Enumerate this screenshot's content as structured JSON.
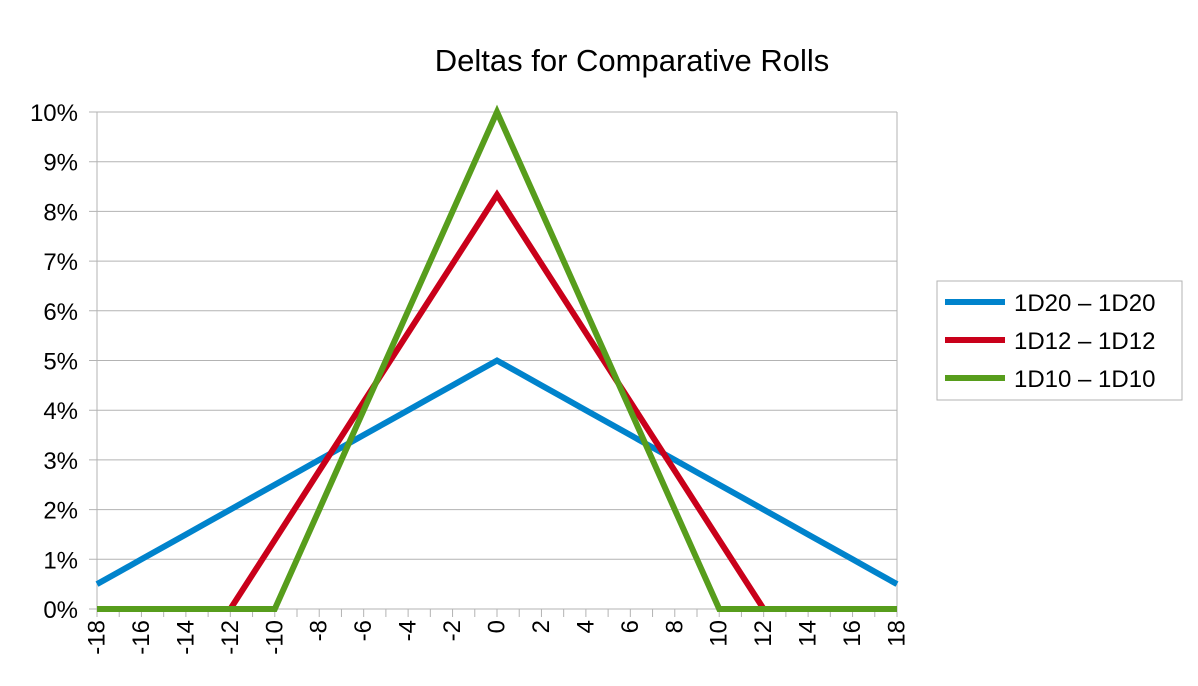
{
  "chart_data": {
    "type": "line",
    "title": "Deltas for Comparative Rolls",
    "xlabel": "",
    "ylabel": "",
    "x": [
      -18,
      -17,
      -16,
      -15,
      -14,
      -13,
      -12,
      -11,
      -10,
      -9,
      -8,
      -7,
      -6,
      -5,
      -4,
      -3,
      -2,
      -1,
      0,
      1,
      2,
      3,
      4,
      5,
      6,
      7,
      8,
      9,
      10,
      11,
      12,
      13,
      14,
      15,
      16,
      17,
      18
    ],
    "x_tick_labels": [
      "-18",
      "-16",
      "-14",
      "-12",
      "-10",
      "-8",
      "-6",
      "-4",
      "-2",
      "0",
      "2",
      "4",
      "6",
      "8",
      "10",
      "12",
      "14",
      "16",
      "18"
    ],
    "y_tick_labels": [
      "0%",
      "1%",
      "2%",
      "3%",
      "4%",
      "5%",
      "6%",
      "7%",
      "8%",
      "9%",
      "10%"
    ],
    "xlim": [
      -18,
      18
    ],
    "ylim": [
      0,
      10
    ],
    "y_unit": "%",
    "grid": "horizontal",
    "legend_position": "right",
    "series": [
      {
        "name": "1D20 – 1D20",
        "color": "#0083cc",
        "values": [
          0.5,
          0.75,
          1.0,
          1.25,
          1.5,
          1.75,
          2.0,
          2.25,
          2.5,
          2.75,
          3.0,
          3.25,
          3.5,
          3.75,
          4.0,
          4.25,
          4.5,
          4.75,
          5.0,
          4.75,
          4.5,
          4.25,
          4.0,
          3.75,
          3.5,
          3.25,
          3.0,
          2.75,
          2.5,
          2.25,
          2.0,
          1.75,
          1.5,
          1.25,
          1.0,
          0.75,
          0.5
        ]
      },
      {
        "name": "1D12 – 1D12",
        "color": "#c9001a",
        "values": [
          0,
          0,
          0,
          0,
          0,
          0,
          0,
          0.694,
          1.389,
          2.083,
          2.778,
          3.472,
          4.167,
          4.861,
          5.556,
          6.25,
          6.944,
          7.639,
          8.333,
          7.639,
          6.944,
          6.25,
          5.556,
          4.861,
          4.167,
          3.472,
          2.778,
          2.083,
          1.389,
          0.694,
          0,
          0,
          0,
          0,
          0,
          0,
          0
        ]
      },
      {
        "name": "1D10 – 1D10",
        "color": "#579d1c",
        "values": [
          0,
          0,
          0,
          0,
          0,
          0,
          0,
          0,
          0,
          1,
          2,
          3,
          4,
          5,
          6,
          7,
          8,
          9,
          10,
          9,
          8,
          7,
          6,
          5,
          4,
          3,
          2,
          1,
          0,
          0,
          0,
          0,
          0,
          0,
          0,
          0,
          0
        ]
      }
    ]
  }
}
